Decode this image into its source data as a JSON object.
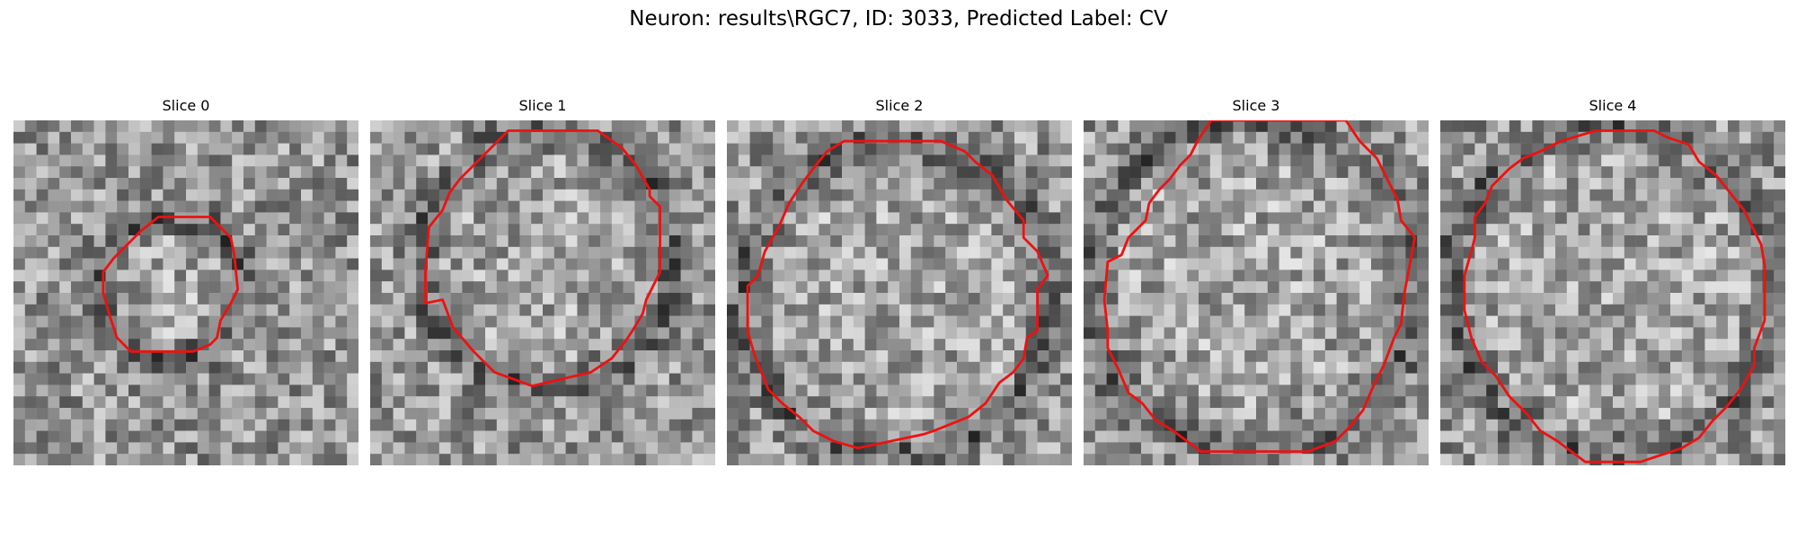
{
  "figure": {
    "title": "Neuron: results\\RGC7, ID: 3033, Predicted Label: CV"
  },
  "panels": [
    {
      "title": "Slice 0",
      "seed": 11,
      "outline": [
        [
          0.42,
          0.28
        ],
        [
          0.57,
          0.28
        ],
        [
          0.63,
          0.34
        ],
        [
          0.64,
          0.39
        ],
        [
          0.65,
          0.49
        ],
        [
          0.63,
          0.53
        ],
        [
          0.6,
          0.58
        ],
        [
          0.59,
          0.63
        ],
        [
          0.57,
          0.65
        ],
        [
          0.52,
          0.67
        ],
        [
          0.34,
          0.67
        ],
        [
          0.3,
          0.63
        ],
        [
          0.28,
          0.57
        ],
        [
          0.26,
          0.5
        ],
        [
          0.26,
          0.44
        ],
        [
          0.29,
          0.4
        ],
        [
          0.33,
          0.36
        ],
        [
          0.37,
          0.32
        ]
      ]
    },
    {
      "title": "Slice 1",
      "seed": 23,
      "outline": [
        [
          0.4,
          0.03
        ],
        [
          0.66,
          0.03
        ],
        [
          0.73,
          0.08
        ],
        [
          0.77,
          0.13
        ],
        [
          0.81,
          0.2
        ],
        [
          0.81,
          0.22
        ],
        [
          0.84,
          0.25
        ],
        [
          0.84,
          0.44
        ],
        [
          0.8,
          0.52
        ],
        [
          0.79,
          0.56
        ],
        [
          0.76,
          0.61
        ],
        [
          0.74,
          0.64
        ],
        [
          0.7,
          0.69
        ],
        [
          0.64,
          0.73
        ],
        [
          0.47,
          0.77
        ],
        [
          0.36,
          0.73
        ],
        [
          0.3,
          0.67
        ],
        [
          0.24,
          0.6
        ],
        [
          0.21,
          0.52
        ],
        [
          0.16,
          0.53
        ],
        [
          0.16,
          0.44
        ],
        [
          0.17,
          0.31
        ],
        [
          0.21,
          0.26
        ],
        [
          0.23,
          0.21
        ],
        [
          0.26,
          0.17
        ],
        [
          0.32,
          0.11
        ]
      ]
    },
    {
      "title": "Slice 2",
      "seed": 37,
      "outline": [
        [
          0.34,
          0.06
        ],
        [
          0.62,
          0.06
        ],
        [
          0.69,
          0.09
        ],
        [
          0.72,
          0.12
        ],
        [
          0.77,
          0.16
        ],
        [
          0.81,
          0.23
        ],
        [
          0.86,
          0.29
        ],
        [
          0.86,
          0.34
        ],
        [
          0.9,
          0.38
        ],
        [
          0.93,
          0.45
        ],
        [
          0.9,
          0.49
        ],
        [
          0.9,
          0.61
        ],
        [
          0.87,
          0.63
        ],
        [
          0.86,
          0.69
        ],
        [
          0.83,
          0.73
        ],
        [
          0.79,
          0.76
        ],
        [
          0.75,
          0.82
        ],
        [
          0.7,
          0.86
        ],
        [
          0.6,
          0.9
        ],
        [
          0.57,
          0.91
        ],
        [
          0.38,
          0.95
        ],
        [
          0.31,
          0.93
        ],
        [
          0.25,
          0.9
        ],
        [
          0.21,
          0.86
        ],
        [
          0.16,
          0.82
        ],
        [
          0.12,
          0.78
        ],
        [
          0.1,
          0.73
        ],
        [
          0.08,
          0.68
        ],
        [
          0.06,
          0.61
        ],
        [
          0.06,
          0.48
        ],
        [
          0.09,
          0.45
        ],
        [
          0.11,
          0.38
        ],
        [
          0.15,
          0.31
        ],
        [
          0.18,
          0.24
        ],
        [
          0.22,
          0.18
        ],
        [
          0.25,
          0.14
        ],
        [
          0.29,
          0.09
        ]
      ]
    },
    {
      "title": "Slice 3",
      "seed": 53,
      "outline": [
        [
          0.37,
          0.0
        ],
        [
          0.33,
          0.06
        ],
        [
          0.31,
          0.1
        ],
        [
          0.28,
          0.13
        ],
        [
          0.25,
          0.17
        ],
        [
          0.22,
          0.2
        ],
        [
          0.19,
          0.24
        ],
        [
          0.18,
          0.29
        ],
        [
          0.13,
          0.34
        ],
        [
          0.11,
          0.39
        ],
        [
          0.07,
          0.41
        ],
        [
          0.06,
          0.52
        ],
        [
          0.07,
          0.61
        ],
        [
          0.07,
          0.66
        ],
        [
          0.1,
          0.72
        ],
        [
          0.13,
          0.79
        ],
        [
          0.17,
          0.82
        ],
        [
          0.21,
          0.87
        ],
        [
          0.26,
          0.9
        ],
        [
          0.3,
          0.93
        ],
        [
          0.34,
          0.96
        ],
        [
          0.65,
          0.96
        ],
        [
          0.73,
          0.93
        ],
        [
          0.77,
          0.89
        ],
        [
          0.81,
          0.84
        ],
        [
          0.84,
          0.77
        ],
        [
          0.87,
          0.71
        ],
        [
          0.9,
          0.63
        ],
        [
          0.92,
          0.59
        ],
        [
          0.93,
          0.5
        ],
        [
          0.96,
          0.34
        ],
        [
          0.92,
          0.29
        ],
        [
          0.91,
          0.23
        ],
        [
          0.88,
          0.17
        ],
        [
          0.85,
          0.11
        ],
        [
          0.82,
          0.08
        ],
        [
          0.8,
          0.06
        ],
        [
          0.76,
          0.0
        ]
      ]
    },
    {
      "title": "Slice 4",
      "seed": 71,
      "outline": [
        [
          0.42,
          0.99
        ],
        [
          0.34,
          0.93
        ],
        [
          0.29,
          0.9
        ],
        [
          0.25,
          0.85
        ],
        [
          0.2,
          0.8
        ],
        [
          0.16,
          0.74
        ],
        [
          0.12,
          0.7
        ],
        [
          0.09,
          0.63
        ],
        [
          0.07,
          0.55
        ],
        [
          0.07,
          0.45
        ],
        [
          0.09,
          0.38
        ],
        [
          0.1,
          0.34
        ],
        [
          0.1,
          0.28
        ],
        [
          0.13,
          0.24
        ],
        [
          0.15,
          0.19
        ],
        [
          0.2,
          0.14
        ],
        [
          0.24,
          0.11
        ],
        [
          0.29,
          0.09
        ],
        [
          0.35,
          0.06
        ],
        [
          0.45,
          0.03
        ],
        [
          0.62,
          0.03
        ],
        [
          0.66,
          0.05
        ],
        [
          0.72,
          0.07
        ],
        [
          0.75,
          0.12
        ],
        [
          0.8,
          0.16
        ],
        [
          0.84,
          0.21
        ],
        [
          0.88,
          0.26
        ],
        [
          0.9,
          0.3
        ],
        [
          0.93,
          0.36
        ],
        [
          0.94,
          0.42
        ],
        [
          0.94,
          0.58
        ],
        [
          0.91,
          0.66
        ],
        [
          0.91,
          0.71
        ],
        [
          0.87,
          0.78
        ],
        [
          0.83,
          0.83
        ],
        [
          0.79,
          0.87
        ],
        [
          0.75,
          0.92
        ],
        [
          0.7,
          0.95
        ],
        [
          0.64,
          0.97
        ],
        [
          0.58,
          0.99
        ]
      ]
    }
  ],
  "colors": {
    "outline": "#ee1111",
    "background": "#ffffff"
  }
}
